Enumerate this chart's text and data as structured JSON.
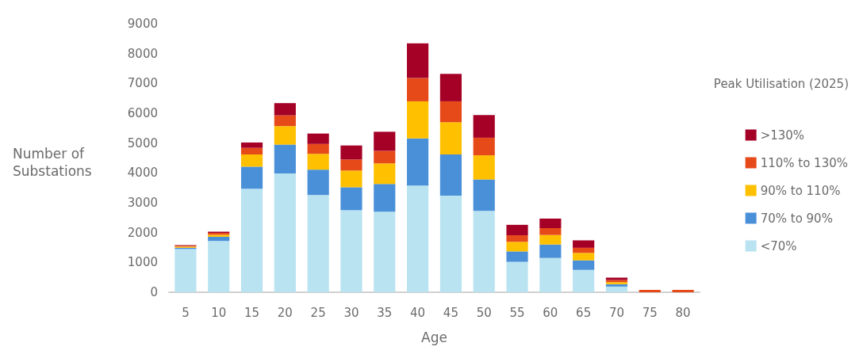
{
  "chart_data": {
    "type": "bar",
    "stacked": true,
    "xlabel": "Age",
    "ylabel": "Number of Substations",
    "legend_title": "Peak Utilisation (2025)",
    "legend": "right",
    "grid": false,
    "categories": [
      "5",
      "10",
      "15",
      "20",
      "25",
      "30",
      "35",
      "40",
      "45",
      "50",
      "55",
      "60",
      "65",
      "70",
      "75",
      "80"
    ],
    "ylim": [
      0,
      9000
    ],
    "yticks": [
      0,
      1000,
      2000,
      3000,
      4000,
      5000,
      6000,
      7000,
      8000,
      9000
    ],
    "series": [
      {
        "name": "<70%",
        "color": "#b9e3f0",
        "values": [
          1450,
          1720,
          3470,
          3980,
          3260,
          2750,
          2700,
          3580,
          3240,
          2730,
          1020,
          1150,
          750,
          190,
          null,
          null
        ]
      },
      {
        "name": "70% to 90%",
        "color": "#4a90d9",
        "values": [
          40,
          140,
          740,
          970,
          850,
          770,
          930,
          1580,
          1380,
          1050,
          350,
          450,
          320,
          80,
          null,
          null
        ]
      },
      {
        "name": "90% to 110%",
        "color": "#ffc000",
        "values": [
          40,
          70,
          410,
          620,
          530,
          560,
          690,
          1240,
          1080,
          810,
          320,
          320,
          250,
          70,
          null,
          null
        ]
      },
      {
        "name": "110% to 130%",
        "color": "#e64a19",
        "values": [
          30,
          60,
          220,
          360,
          330,
          370,
          420,
          780,
          700,
          590,
          220,
          230,
          170,
          70,
          80,
          80
        ]
      },
      {
        "name": ">130%",
        "color": "#a50026",
        "values": [
          20,
          40,
          180,
          410,
          350,
          470,
          640,
          1160,
          920,
          760,
          350,
          320,
          250,
          80,
          null,
          null
        ]
      }
    ]
  }
}
